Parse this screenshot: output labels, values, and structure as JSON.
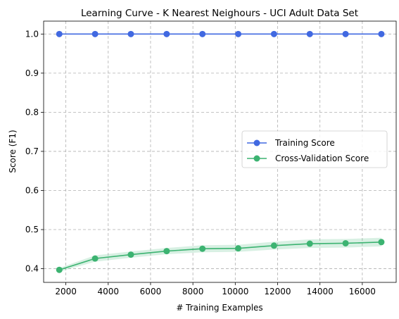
{
  "chart_data": {
    "type": "line",
    "title": "Learning Curve - K Nearest Neighours - UCI Adult Data Set",
    "xlabel": "# Training Examples",
    "ylabel": "Score (F1)",
    "xlim": [
      950,
      17600
    ],
    "ylim": [
      0.365,
      1.033
    ],
    "xticks": [
      2000,
      4000,
      6000,
      8000,
      10000,
      12000,
      14000,
      16000
    ],
    "yticks": [
      0.4,
      0.5,
      0.6,
      0.7,
      0.8,
      0.9,
      1.0
    ],
    "grid": true,
    "legend_position": "center-right",
    "x": [
      1690,
      3380,
      5070,
      6760,
      8450,
      10140,
      11830,
      13520,
      15210,
      16900
    ],
    "series": [
      {
        "name": "Training Score",
        "color": "#4169e1",
        "values": [
          1.0,
          1.0,
          1.0,
          1.0,
          1.0,
          1.0,
          1.0,
          1.0,
          1.0,
          1.0
        ]
      },
      {
        "name": "Cross-Validation Score",
        "color": "#3cb371",
        "values": [
          0.397,
          0.426,
          0.436,
          0.445,
          0.451,
          0.452,
          0.459,
          0.464,
          0.465,
          0.468
        ],
        "band_lower": [
          0.392,
          0.418,
          0.428,
          0.437,
          0.442,
          0.443,
          0.449,
          0.453,
          0.454,
          0.457
        ],
        "band_upper": [
          0.402,
          0.434,
          0.444,
          0.453,
          0.46,
          0.461,
          0.469,
          0.475,
          0.476,
          0.479
        ]
      }
    ]
  }
}
